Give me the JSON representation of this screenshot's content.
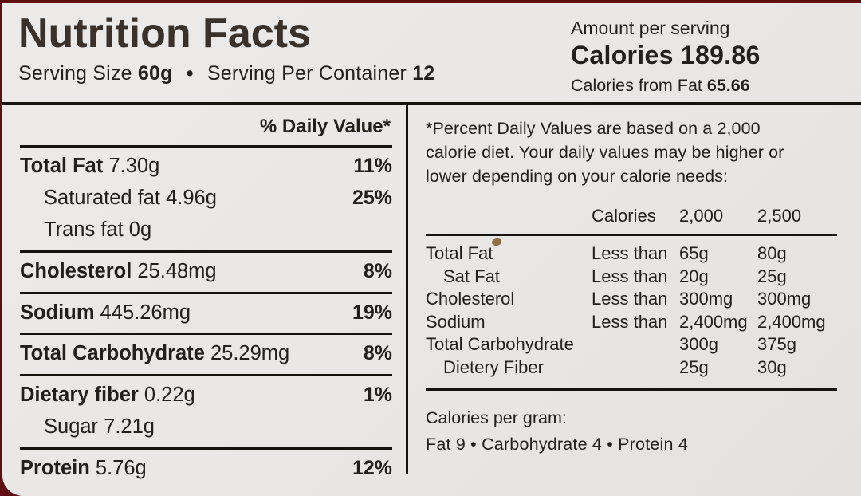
{
  "colors": {
    "packaging_red": "#5f0d13",
    "label_background": "#e9e7e5",
    "ink": "#15130f",
    "title_ink": "#3a312a"
  },
  "header": {
    "title": "Nutrition Facts",
    "serving_size_label": "Serving Size",
    "serving_size_value": "60g",
    "bullet": "•",
    "servings_per_container_label": "Serving Per Container",
    "servings_per_container_value": "12",
    "amount_per_serving": "Amount per serving",
    "calories_label": "Calories",
    "calories_value": "189.86",
    "calories_from_fat_label": "Calories from Fat",
    "calories_from_fat_value": "65.66"
  },
  "left_panel": {
    "daily_value_header": "% Daily Value*",
    "nutrients": [
      {
        "name": "Total Fat",
        "amount": "7.30g",
        "dv": "11%",
        "bold_name": true,
        "indent": false,
        "rule_after": false
      },
      {
        "name": "Saturated fat",
        "amount": "4.96g",
        "dv": "25%",
        "bold_name": false,
        "indent": true,
        "rule_after": false
      },
      {
        "name": "Trans fat",
        "amount": "0g",
        "dv": "",
        "bold_name": false,
        "indent": true,
        "rule_after": true
      },
      {
        "name": "Cholesterol",
        "amount": "25.48mg",
        "dv": "8%",
        "bold_name": true,
        "indent": false,
        "rule_after": true
      },
      {
        "name": "Sodium",
        "amount": "445.26mg",
        "dv": "19%",
        "bold_name": true,
        "indent": false,
        "rule_after": true
      },
      {
        "name": "Total Carbohydrate",
        "amount": "25.29mg",
        "dv": "8%",
        "bold_name": true,
        "indent": false,
        "rule_after": true
      },
      {
        "name": "Dietary fiber",
        "amount": "0.22g",
        "dv": "1%",
        "bold_name": true,
        "indent": false,
        "rule_after": false
      },
      {
        "name": "Sugar",
        "amount": "7.21g",
        "dv": "",
        "bold_name": false,
        "indent": true,
        "rule_after": true
      },
      {
        "name": "Protein",
        "amount": "5.76g",
        "dv": "12%",
        "bold_name": true,
        "indent": false,
        "rule_after": false
      }
    ]
  },
  "right_panel": {
    "footnote": "*Percent Daily Values are based on a 2,000 calorie diet. Your daily values may be higher or lower depending on your calorie needs:",
    "table": {
      "header_calories": "Calories",
      "header_2000": "2,000",
      "header_2500": "2,500",
      "rows": [
        {
          "name": "Total Fat",
          "qualifier": "Less than",
          "v2000": "65g",
          "v2500": "80g",
          "indent": false
        },
        {
          "name": "Sat Fat",
          "qualifier": "Less than",
          "v2000": "20g",
          "v2500": "25g",
          "indent": true
        },
        {
          "name": "Cholesterol",
          "qualifier": "Less than",
          "v2000": "300mg",
          "v2500": "300mg",
          "indent": false
        },
        {
          "name": "Sodium",
          "qualifier": "Less than",
          "v2000": "2,400mg",
          "v2500": "2,400mg",
          "indent": false
        },
        {
          "name": "Total Carbohydrate",
          "qualifier": "",
          "v2000": "300g",
          "v2500": "375g",
          "indent": false
        },
        {
          "name": "Dietery Fiber",
          "qualifier": "",
          "v2000": "25g",
          "v2500": "30g",
          "indent": true
        }
      ]
    },
    "calories_per_gram": {
      "title": "Calories per gram:",
      "line": "Fat 9   •   Carbohydrate 4   •   Protein 4"
    }
  }
}
